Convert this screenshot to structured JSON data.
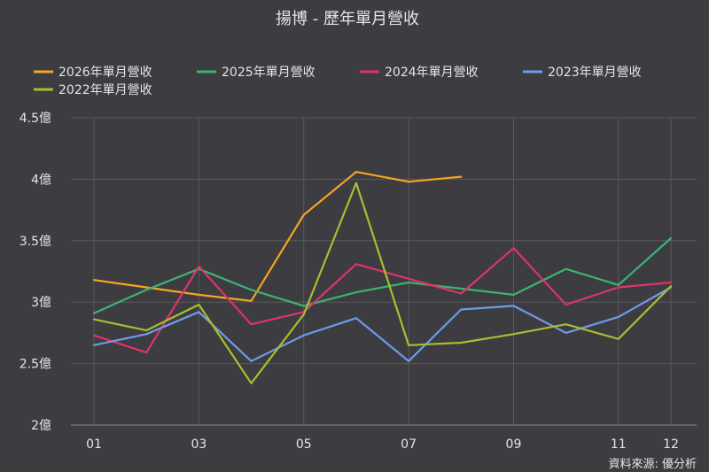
{
  "chart_data": {
    "type": "line",
    "title": "揚博 - 歷年單月營收",
    "source": "資料來源: 優分析",
    "x": [
      1,
      2,
      3,
      4,
      5,
      6,
      7,
      8,
      9,
      10,
      11,
      12
    ],
    "x_tick_labels": [
      {
        "x": 1,
        "label": "01"
      },
      {
        "x": 3,
        "label": "03"
      },
      {
        "x": 5,
        "label": "05"
      },
      {
        "x": 7,
        "label": "07"
      },
      {
        "x": 9,
        "label": "09"
      },
      {
        "x": 11,
        "label": "11"
      },
      {
        "x": 12,
        "label": "12"
      }
    ],
    "ylim": [
      2,
      4.5
    ],
    "y_ticks": [
      2,
      2.5,
      3,
      3.5,
      4,
      4.5
    ],
    "y_tick_labels": [
      "2億",
      "2.5億",
      "3億",
      "3.5億",
      "4億",
      "4.5億"
    ],
    "grid": true,
    "legend_position": "top",
    "series": [
      {
        "name": "2026年單月營收",
        "color": "#f5a623",
        "values": [
          3.18,
          3.12,
          3.06,
          3.01,
          3.71,
          4.06,
          3.98,
          4.02,
          null,
          null,
          null,
          null
        ]
      },
      {
        "name": "2025年單月營收",
        "color": "#3cb371",
        "values": [
          2.91,
          3.1,
          3.27,
          3.1,
          2.97,
          3.08,
          3.16,
          3.11,
          3.06,
          3.27,
          3.14,
          3.52
        ]
      },
      {
        "name": "2024年單月營收",
        "color": "#e0336b",
        "values": [
          2.73,
          2.59,
          3.29,
          2.82,
          2.92,
          3.31,
          3.19,
          3.07,
          3.44,
          2.98,
          3.12,
          3.16
        ]
      },
      {
        "name": "2023年單月營收",
        "color": "#6f9be8",
        "values": [
          2.65,
          2.74,
          2.92,
          2.52,
          2.73,
          2.87,
          2.52,
          2.94,
          2.97,
          2.75,
          2.88,
          3.12
        ]
      },
      {
        "name": "2022年單月營收",
        "color": "#a7bf2f",
        "values": [
          2.86,
          2.77,
          2.98,
          2.34,
          2.9,
          3.97,
          2.65,
          2.67,
          2.74,
          2.82,
          2.7,
          3.13
        ]
      }
    ]
  }
}
